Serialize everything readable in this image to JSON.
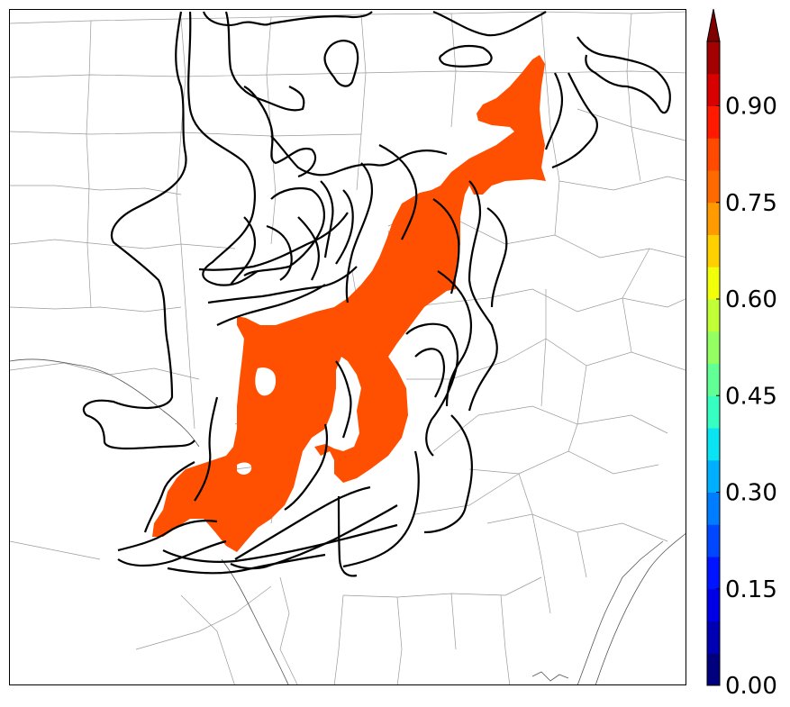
{
  "colorbar": {
    "ticks": [
      "0.00",
      "0.15",
      "0.30",
      "0.45",
      "0.60",
      "0.75",
      "0.90"
    ],
    "tick_values": [
      0.0,
      0.15,
      0.3,
      0.45,
      0.6,
      0.75,
      0.9
    ],
    "range": [
      0.0,
      1.0
    ],
    "extend": "max",
    "colors": [
      "#00007f",
      "#0000b3",
      "#0000e6",
      "#0014ff",
      "#0048ff",
      "#007cff",
      "#00b0ff",
      "#0ae4f2",
      "#36ffc1",
      "#62ff94",
      "#94ff62",
      "#c1ff36",
      "#f2ff0a",
      "#ffd000",
      "#ff9a00",
      "#ff6a00",
      "#ff4a00",
      "#ff1a00",
      "#d80000",
      "#a30000"
    ],
    "extend_color": "#7f0000"
  },
  "map": {
    "filled_region_color": "#ff4f00",
    "filled_region_value_range": [
      0.8,
      0.85
    ],
    "contour_color": "#000000",
    "boundary_color": "#999999"
  }
}
